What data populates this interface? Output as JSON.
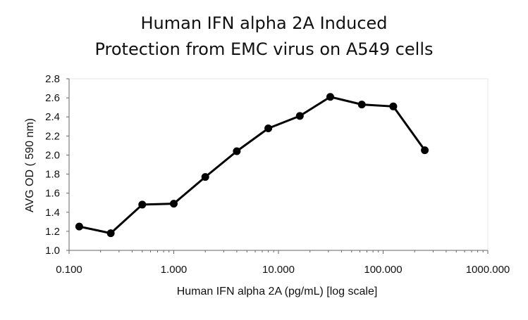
{
  "chart_data": {
    "type": "line",
    "title_lines": [
      "Human IFN alpha 2A Induced",
      "Protection from EMC virus on A549 cells"
    ],
    "xlabel": "Human IFN alpha 2A (pg/mL) [log scale]",
    "ylabel": "AVG OD ( 590 nm)",
    "x_scale": "log",
    "xlim": [
      0.1,
      1000
    ],
    "ylim": [
      1.0,
      2.8
    ],
    "x_ticks": [
      0.1,
      1,
      10,
      100,
      1000
    ],
    "x_tick_labels": [
      "0.100",
      "1.000",
      "10.000",
      "100.000",
      "1000.000"
    ],
    "y_ticks": [
      1.0,
      1.2,
      1.4,
      1.6,
      1.8,
      2.0,
      2.2,
      2.4,
      2.6,
      2.8
    ],
    "y_tick_labels": [
      "1.0",
      "1.2",
      "1.4",
      "1.6",
      "1.8",
      "2.0",
      "2.2",
      "2.4",
      "2.6",
      "2.8"
    ],
    "grid": false,
    "legend": "none",
    "series": [
      {
        "x": [
          0.125,
          0.25,
          0.5,
          1,
          2,
          4,
          8,
          16,
          31.25,
          62.5,
          125,
          250
        ],
        "y": [
          1.25,
          1.18,
          1.48,
          1.49,
          1.77,
          2.04,
          2.28,
          2.41,
          2.61,
          2.53,
          2.51,
          2.05
        ]
      }
    ],
    "colors": {
      "line": "#000000",
      "marker": "#000000",
      "axis": "#666666",
      "frame": "#e6e6e6"
    }
  }
}
